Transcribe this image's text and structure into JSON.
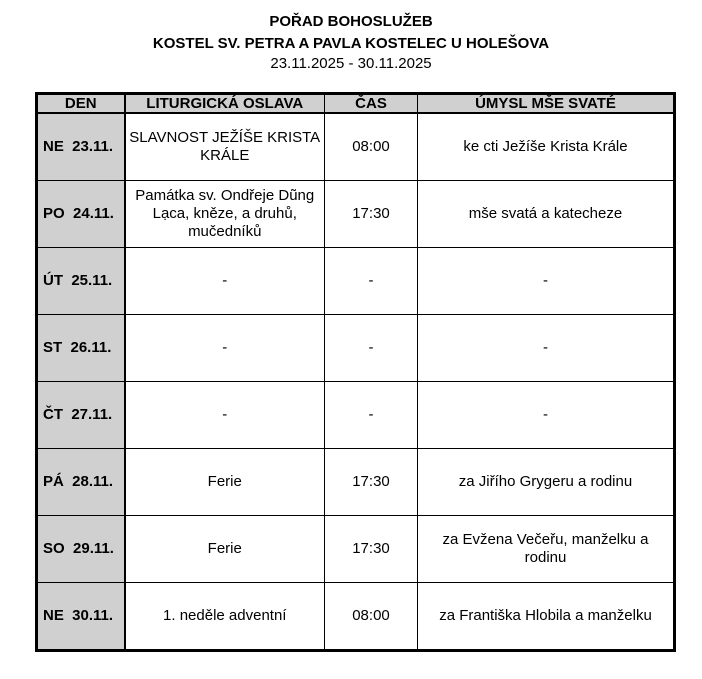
{
  "header": {
    "title": "POŘAD BOHOSLUŽEB",
    "church": "KOSTEL SV. PETRA A PAVLA KOSTELEC U HOLEŠOVA",
    "dates": "23.11.2025 - 30.11.2025"
  },
  "table": {
    "columns": [
      "DEN",
      "LITURGICKÁ OSLAVA",
      "ČAS",
      "ÚMYSL MŠE SVATÉ"
    ],
    "rows": [
      {
        "day": "NE  23.11.",
        "celebration": "SLAVNOST JEŽÍŠE KRISTA KRÁLE",
        "time": "08:00",
        "intention": "ke cti Ježíše Krista Krále"
      },
      {
        "day": "PO  24.11.",
        "celebration": "Památka sv. Ondřeje Dũng Lạca, kněze, a druhů, mučedníků",
        "time": "17:30",
        "intention": "mše svatá a katecheze"
      },
      {
        "day": "ÚT  25.11.",
        "celebration": "-",
        "time": "-",
        "intention": "-"
      },
      {
        "day": "ST  26.11.",
        "celebration": "-",
        "time": "-",
        "intention": "-"
      },
      {
        "day": "ČT  27.11.",
        "celebration": "-",
        "time": "-",
        "intention": "-"
      },
      {
        "day": "PÁ  28.11.",
        "celebration": "Ferie",
        "time": "17:30",
        "intention": "za Jiřího Grygeru a rodinu"
      },
      {
        "day": "SO  29.11.",
        "celebration": "Ferie",
        "time": "17:30",
        "intention": "za Evžena Večeřu, manželku a rodinu"
      },
      {
        "day": "NE  30.11.",
        "celebration": "1. neděle adventní",
        "time": "08:00",
        "intention": "za Františka Hlobila a manželku"
      }
    ]
  }
}
